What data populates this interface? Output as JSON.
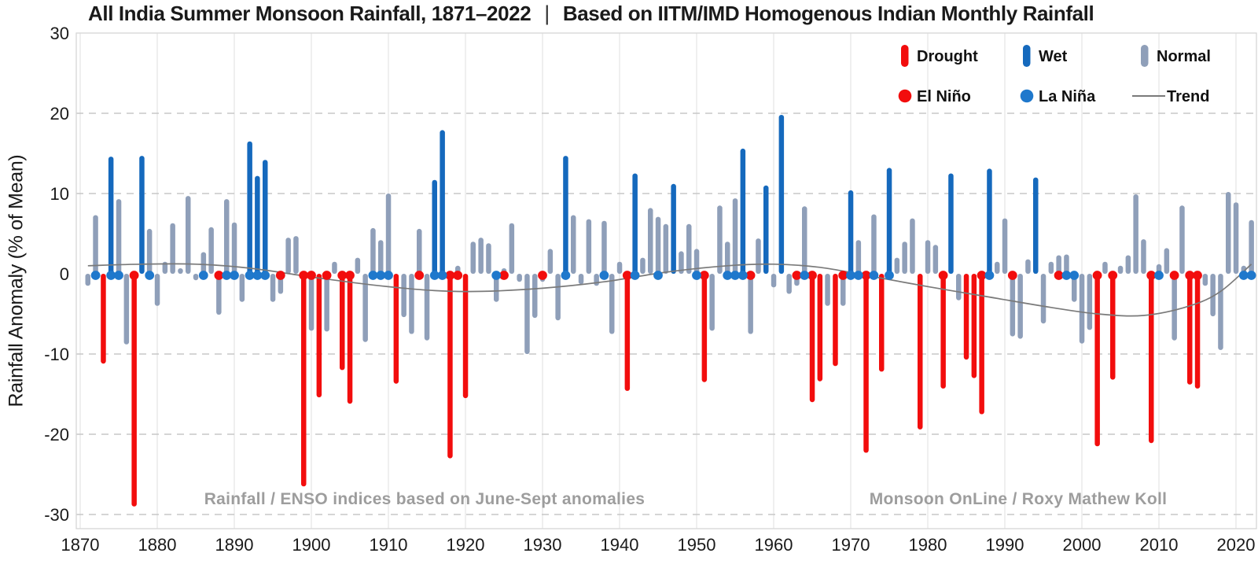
{
  "title": {
    "main": "All India Summer Monsoon Rainfall, 1871–2022",
    "separator": "|",
    "subtitle": "Based on IITM/IMD Homogenous Indian Monthly Rainfall"
  },
  "y_axis": {
    "label": "Rainfall Anomaly (% of Mean)",
    "ticks": [
      {
        "v": 30,
        "label": "30"
      },
      {
        "v": 20,
        "label": "20"
      },
      {
        "v": 10,
        "label": "10"
      },
      {
        "v": 0,
        "label": "0"
      },
      {
        "v": -10,
        "label": "-10"
      },
      {
        "v": -20,
        "label": "-20"
      },
      {
        "v": -30,
        "label": "-30"
      }
    ],
    "range": [
      -30,
      30
    ]
  },
  "x_axis": {
    "ticks": [
      "1870",
      "1880",
      "1890",
      "1900",
      "1910",
      "1920",
      "1930",
      "1940",
      "1950",
      "1960",
      "1970",
      "1980",
      "1990",
      "2000",
      "2010",
      "2020"
    ],
    "range": [
      1870,
      2022
    ]
  },
  "legend": {
    "row1": [
      {
        "key": "drought",
        "label": "Drought",
        "marker": "bar"
      },
      {
        "key": "wet",
        "label": "Wet",
        "marker": "bar"
      },
      {
        "key": "normal",
        "label": "Normal",
        "marker": "bar"
      }
    ],
    "row2": [
      {
        "key": "elnino",
        "label": "El Niño",
        "marker": "dot"
      },
      {
        "key": "lanina",
        "label": "La Niña",
        "marker": "dot"
      },
      {
        "key": "trend",
        "label": "Trend",
        "marker": "line"
      }
    ]
  },
  "annotations": {
    "left": "Rainfall / ENSO indices based on June-Sept anomalies",
    "right": "Monsoon OnLine / Roxy Mathew Koll"
  },
  "colors": {
    "drought": "#f20d0d",
    "wet": "#1569bd",
    "normal": "#8f9fb9",
    "elnino": "#f20d0d",
    "lanina": "#1f78cc",
    "trend": "#7a7a7a",
    "grid_dashed": "#c7c7c7",
    "grid_vertical": "#e4e4e4",
    "frame": "#d6d6d6",
    "note_gray": "#9d9d9d",
    "text": "#1a1a1a"
  },
  "chart_data": {
    "type": "bar",
    "title": "All India Summer Monsoon Rainfall, 1871–2022",
    "xlabel": "",
    "ylabel": "Rainfall Anomaly (% of Mean)",
    "ylim": [
      -30,
      30
    ],
    "grid": "horizontal-dashed-and-decade-vertical",
    "legend_position": "top-right-inside",
    "start_year": 1871,
    "end_year": 2022,
    "values": [
      -1.5,
      7.3,
      -11.2,
      14.6,
      9.3,
      -8.8,
      -29,
      14.7,
      5.6,
      -4,
      1.5,
      6.3,
      0.5,
      9.7,
      -0.8,
      2.7,
      5.8,
      -5.1,
      9.3,
      6.4,
      -3.5,
      16.5,
      12.2,
      14.2,
      -3.5,
      -2.5,
      4.5,
      4.7,
      -26.5,
      -7.1,
      -15.4,
      -7.2,
      1.5,
      -12,
      -16.2,
      2,
      -8.5,
      5.7,
      4.2,
      10,
      -13.7,
      -5.4,
      -7.5,
      5.6,
      -8.3,
      11.7,
      17.9,
      -23,
      1,
      -15.5,
      4,
      4.5,
      3.8,
      -3.5,
      0.5,
      6.3,
      -1,
      -10,
      -5.5,
      -1,
      3.1,
      -5.8,
      14.7,
      7.3,
      -1.3,
      6.8,
      -1.5,
      6.6,
      -7.5,
      1.5,
      -14.6,
      12.5,
      2,
      8.2,
      7.1,
      6.2,
      11.2,
      2.8,
      6.2,
      3.1,
      -13.5,
      -7.1,
      8.5,
      4,
      9.4,
      15.6,
      -7.5,
      4.4,
      11,
      -1.7,
      19.8,
      -2.5,
      -1.5,
      8.4,
      -16,
      -13.4,
      -4,
      -11.5,
      -4,
      10.4,
      4.2,
      -22.3,
      7.4,
      -12.2,
      13.2,
      2,
      4,
      6.9,
      -19.4,
      4.2,
      3.6,
      -14.3,
      12.5,
      -3.3,
      -10.7,
      -13,
      -17.5,
      13.1,
      1.5,
      6.9,
      -7.8,
      -8.1,
      1.8,
      12,
      -6.2,
      1.5,
      2.3,
      2.4,
      -3.5,
      -8.7,
      -7,
      -21.5,
      1.5,
      -13.2,
      1,
      2.3,
      9.9,
      4.3,
      -21.1,
      1.2,
      3.2,
      -8.3,
      8.5,
      -13.8,
      -14.3,
      -1.5,
      -5.3,
      -9.5,
      10.2,
      8.9,
      1,
      6.7
    ],
    "types": "nndwnndwnnnnnnnnnnnnnwwwnnnndndnnddnnnnndnnnnwwdndnnnnnnnnnnnnwnnnnnnndwnnnnwnnndnnnnwnnwnwnnnddndnwndndwnnndnndwndddwnnnnnwnnnnnnndndnnnndnnnnddnnnnnnn",
    "type_legend": {
      "d": "Drought (red)",
      "w": "Wet (blue)",
      "n": "Normal (gray)"
    },
    "elnino_years": [
      1877,
      1888,
      1896,
      1899,
      1900,
      1902,
      1904,
      1905,
      1914,
      1918,
      1919,
      1925,
      1930,
      1941,
      1951,
      1957,
      1963,
      1965,
      1969,
      1972,
      1982,
      1987,
      1991,
      1997,
      2002,
      2004,
      2009,
      2012,
      2014,
      2015
    ],
    "lanina_years": [
      1872,
      1874,
      1875,
      1879,
      1886,
      1889,
      1890,
      1892,
      1893,
      1894,
      1908,
      1909,
      1910,
      1916,
      1917,
      1924,
      1933,
      1938,
      1942,
      1945,
      1950,
      1954,
      1955,
      1956,
      1964,
      1970,
      1971,
      1973,
      1975,
      1988,
      1998,
      1999,
      2010,
      2021,
      2022
    ],
    "trend": [
      [
        1871,
        1.0
      ],
      [
        1878,
        1.2
      ],
      [
        1885,
        1.2
      ],
      [
        1892,
        0.7
      ],
      [
        1900,
        -0.4
      ],
      [
        1908,
        -1.4
      ],
      [
        1916,
        -2.1
      ],
      [
        1922,
        -2.2
      ],
      [
        1930,
        -1.8
      ],
      [
        1938,
        -1.0
      ],
      [
        1946,
        0.2
      ],
      [
        1954,
        1.0
      ],
      [
        1960,
        1.2
      ],
      [
        1966,
        0.8
      ],
      [
        1972,
        -0.2
      ],
      [
        1980,
        -1.6
      ],
      [
        1988,
        -2.9
      ],
      [
        1996,
        -4.2
      ],
      [
        2002,
        -5.0
      ],
      [
        2008,
        -5.2
      ],
      [
        2014,
        -4.0
      ],
      [
        2018,
        -2.2
      ],
      [
        2022,
        1.2
      ]
    ]
  }
}
